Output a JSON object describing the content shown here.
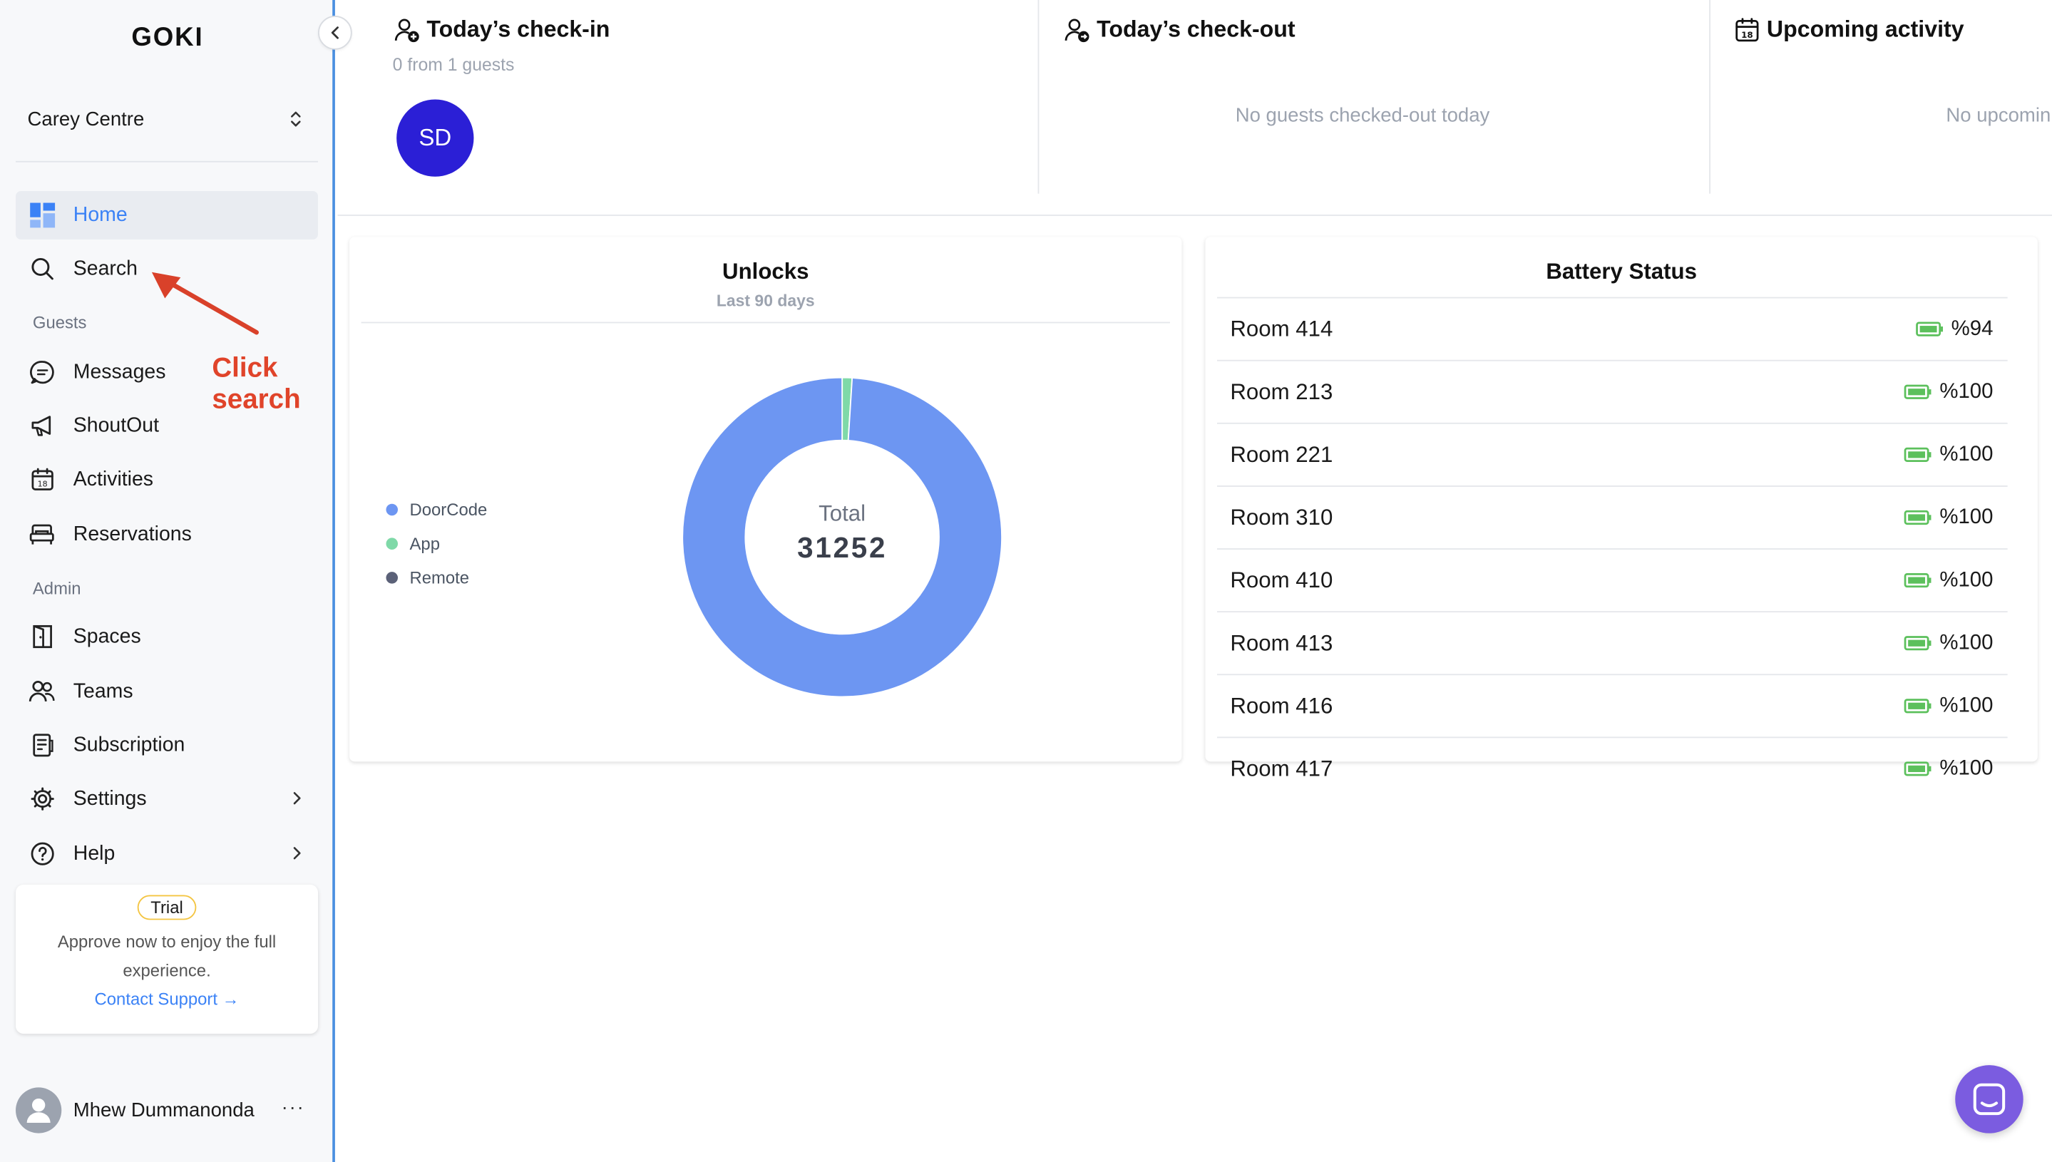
{
  "app": {
    "logo": "GOKI"
  },
  "sidebar": {
    "property": "Carey Centre",
    "items_main": [
      {
        "label": "Home",
        "icon": "dashboard-icon",
        "active": true
      },
      {
        "label": "Search",
        "icon": "search-icon"
      }
    ],
    "guests_label": "Guests",
    "items_guests": [
      {
        "label": "Messages",
        "icon": "chat-bubble-icon"
      },
      {
        "label": "ShoutOut",
        "icon": "megaphone-icon"
      },
      {
        "label": "Activities",
        "icon": "calendar-icon"
      },
      {
        "label": "Reservations",
        "icon": "bed-icon"
      }
    ],
    "admin_label": "Admin",
    "items_admin": [
      {
        "label": "Spaces",
        "icon": "door-icon"
      },
      {
        "label": "Teams",
        "icon": "users-icon"
      },
      {
        "label": "Subscription",
        "icon": "receipt-icon"
      },
      {
        "label": "Settings",
        "icon": "gear-icon"
      },
      {
        "label": "Help",
        "icon": "help-icon"
      }
    ],
    "trial": {
      "badge": "Trial",
      "text": "Approve now to enjoy the full experience.",
      "link": "Contact Support →"
    },
    "user": {
      "name": "Mhew Dummanonda",
      "more": "···"
    }
  },
  "annotation": {
    "text": "Click search"
  },
  "top_cards": {
    "checkin": {
      "title": "Today’s check-in",
      "sub": "0 from 1 guests",
      "avatar": "SD"
    },
    "checkout": {
      "title": "Today’s check-out",
      "empty": "No guests checked-out today"
    },
    "upcoming": {
      "title": "Upcoming activity",
      "empty": "No upcomin"
    }
  },
  "unlocks": {
    "title": "Unlocks",
    "subtitle": "Last 90 days",
    "center_label": "Total",
    "center_value": "31252"
  },
  "chart_data": {
    "type": "pie",
    "title": "Unlocks",
    "subtitle": "Last 90 days",
    "categories": [
      "DoorCode",
      "App",
      "Remote"
    ],
    "values": [
      30940,
      312,
      0
    ],
    "colors": [
      "#6d96f2",
      "#7fd9a8",
      "#5b6178"
    ],
    "legend": "left",
    "total": 31252
  },
  "battery": {
    "title": "Battery Status",
    "level_color": "#5cc05c",
    "rows": [
      {
        "room": "Room 414",
        "value": "%94"
      },
      {
        "room": "Room 213",
        "value": "%100"
      },
      {
        "room": "Room 221",
        "value": "%100"
      },
      {
        "room": "Room 310",
        "value": "%100"
      },
      {
        "room": "Room 410",
        "value": "%100"
      },
      {
        "room": "Room 413",
        "value": "%100"
      },
      {
        "room": "Room 416",
        "value": "%100"
      },
      {
        "room": "Room 417",
        "value": "%100"
      }
    ]
  }
}
